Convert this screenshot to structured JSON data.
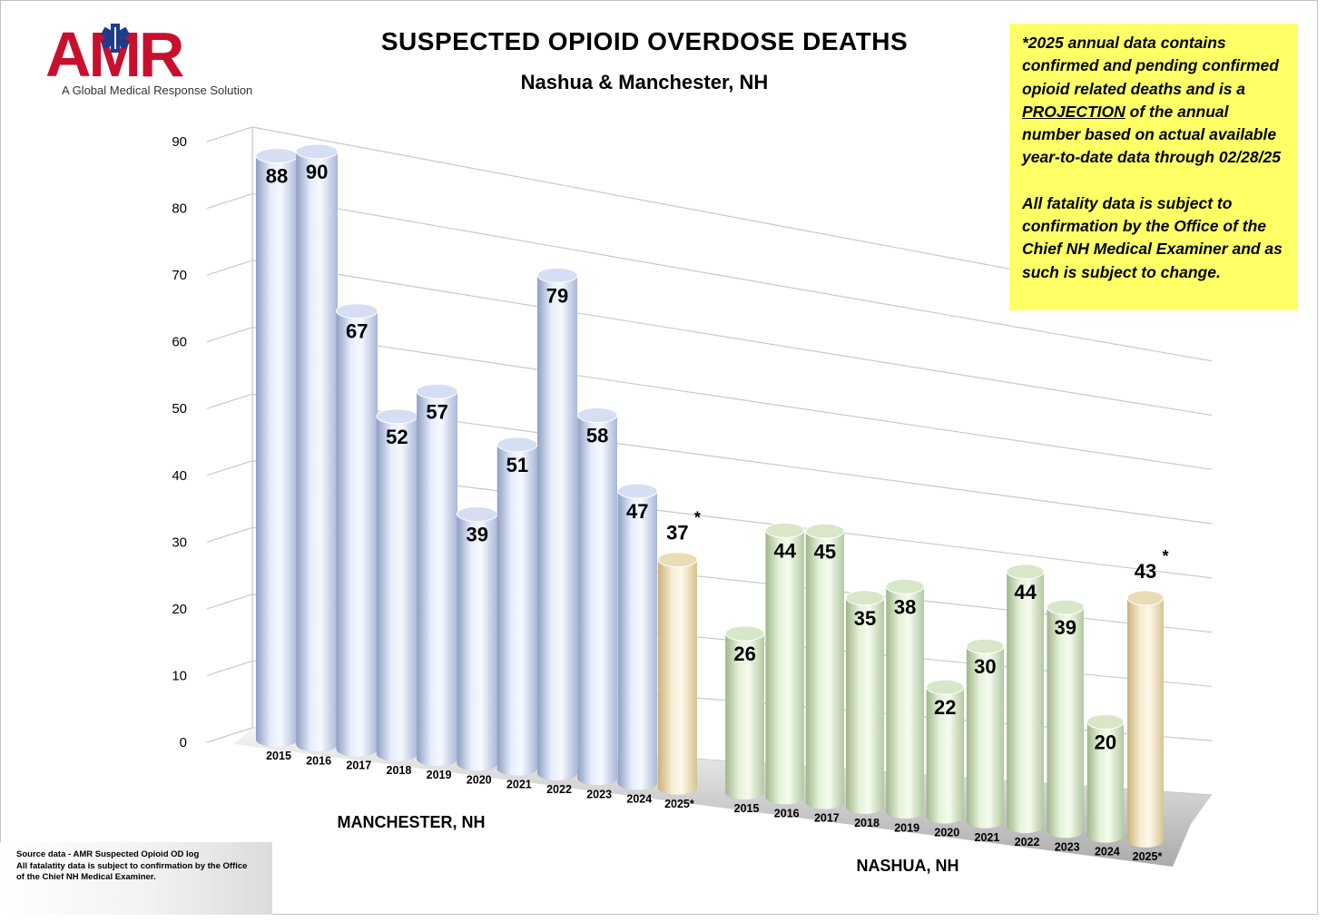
{
  "header": {
    "logo_text": "AMR",
    "logo_tagline": "A Global Medical Response Solution",
    "title": "SUSPECTED OPIOID OVERDOSE DEATHS",
    "subtitle": "Nashua & Manchester, NH"
  },
  "note": {
    "line_a": "*2025 annual data contains confirmed and pending confirmed opioid related deaths and is a ",
    "line_a_emph": "PROJECTION",
    "line_a_end": " of the annual number based on actual available year-to-date data through 02/28/25",
    "line_b": "All fatality data is subject to confirmation by the Office of the Chief NH Medical Examiner and as such is subject to change."
  },
  "source": {
    "line1": "Source data - AMR Suspected Opioid OD log",
    "line2": "All fatalatity data is subject to confirmation by the Office",
    "line3": "of the Chief NH Medical Examiner."
  },
  "colors": {
    "manchester_bar": "#c9d5ef",
    "nashua_bar": "#d3e6c2",
    "projection_bar": "#ecdcaa",
    "note_background": "#ffff66",
    "logo_red": "#c8102e",
    "logo_blue": "#1f3c88"
  },
  "chart_data": {
    "type": "bar",
    "title": "SUSPECTED OPIOID OVERDOSE DEATHS",
    "subtitle": "Nashua & Manchester, NH",
    "ylim": [
      0,
      90
    ],
    "yticks": [
      0,
      10,
      20,
      30,
      40,
      50,
      60,
      70,
      80,
      90
    ],
    "grid": true,
    "series": [
      {
        "name": "MANCHESTER, NH",
        "categories": [
          "2015",
          "2016",
          "2017",
          "2018",
          "2019",
          "2020",
          "2021",
          "2022",
          "2023",
          "2024",
          "2025*"
        ],
        "values": [
          88,
          90,
          67,
          52,
          57,
          39,
          51,
          79,
          58,
          47,
          37
        ],
        "projected": [
          false,
          false,
          false,
          false,
          false,
          false,
          false,
          false,
          false,
          false,
          true
        ]
      },
      {
        "name": "NASHUA, NH",
        "categories": [
          "2015",
          "2016",
          "2017",
          "2018",
          "2019",
          "2020",
          "2021",
          "2022",
          "2023",
          "2024",
          "2025*"
        ],
        "values": [
          26,
          44,
          45,
          35,
          38,
          22,
          30,
          44,
          39,
          20,
          43
        ],
        "projected": [
          false,
          false,
          false,
          false,
          false,
          false,
          false,
          false,
          false,
          false,
          true
        ]
      }
    ],
    "projection_marker": "*"
  }
}
